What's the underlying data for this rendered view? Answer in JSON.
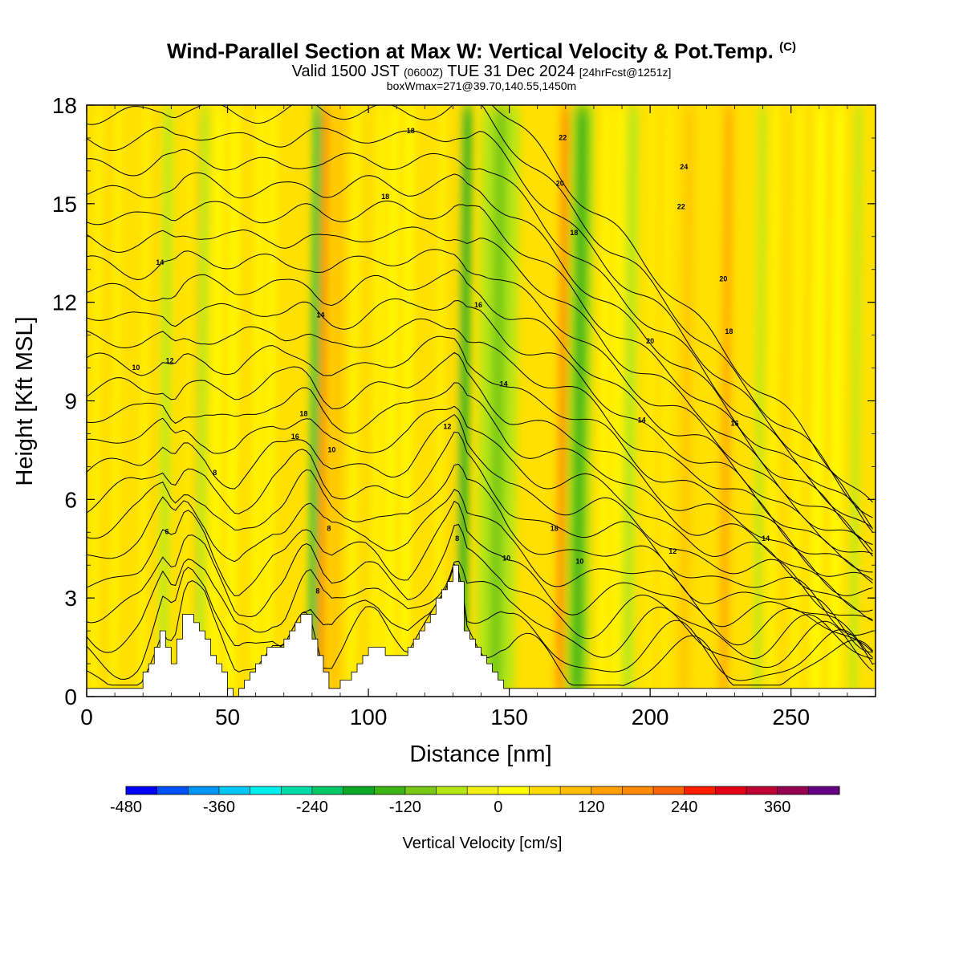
{
  "title": {
    "main": "Wind-Parallel Section at Max W: Vertical Velocity & Pot.Temp.",
    "main_mark": "(C)",
    "valid_prefix": "Valid 1500 JST",
    "valid_utc": "(0600Z)",
    "valid_date": "TUE 31 Dec 2024",
    "forecast": "[24hrFcst@1251z]",
    "boxw": "boxWmax=271@39.70,140.55,1450m"
  },
  "chart_data": {
    "type": "heatmap",
    "xlabel": "Distance [nm]",
    "ylabel": "Height [Kft MSL]",
    "xlim": [
      0,
      280
    ],
    "ylim": [
      0,
      18
    ],
    "x_ticks": [
      0,
      50,
      100,
      150,
      200,
      250
    ],
    "y_ticks": [
      0,
      3,
      6,
      9,
      12,
      15,
      18
    ],
    "colorbar": {
      "label": "Vertical Velocity [cm/s]",
      "levels": [
        -480,
        -440,
        -400,
        -360,
        -320,
        -280,
        -240,
        -200,
        -160,
        -120,
        -80,
        -40,
        0,
        40,
        80,
        120,
        160,
        200,
        240,
        280,
        320,
        360,
        400
      ],
      "tick_labels": [
        -480,
        -360,
        -240,
        -120,
        0,
        120,
        240,
        360
      ],
      "colors": [
        "#0000f5",
        "#0050f5",
        "#0096f5",
        "#00c8f5",
        "#00f0f0",
        "#00dcaa",
        "#00c864",
        "#0aaa28",
        "#3cb414",
        "#78c814",
        "#b4e614",
        "#f0f014",
        "#ffff00",
        "#ffdc00",
        "#ffbe00",
        "#ffa000",
        "#ff8c00",
        "#ff6400",
        "#ff1e00",
        "#e60014",
        "#be0032",
        "#960050",
        "#640082"
      ]
    },
    "terrain": {
      "x": [
        0,
        19,
        22,
        27,
        31,
        35,
        37,
        42,
        45,
        50,
        53,
        56,
        60,
        66,
        70,
        73,
        76,
        79,
        81,
        84,
        87,
        91,
        95,
        99,
        103,
        108,
        114,
        120,
        125,
        128,
        131,
        133,
        135,
        139,
        143,
        148,
        149,
        280
      ],
      "height": [
        0.3,
        0.3,
        0.8,
        1.9,
        1.0,
        2.5,
        2.5,
        2.0,
        1.3,
        0.5,
        0.1,
        0.5,
        0.8,
        1.5,
        1.5,
        2.0,
        2.5,
        2.5,
        1.8,
        0.8,
        0.3,
        0.4,
        0.8,
        1.3,
        1.5,
        1.3,
        1.3,
        2.2,
        2.9,
        3.3,
        4.1,
        3.4,
        2.1,
        1.4,
        0.9,
        0.5,
        0.3,
        0.3
      ]
    },
    "updrafts": [
      {
        "x": 6,
        "width": 5,
        "w": 60
      },
      {
        "x": 23,
        "width": 5,
        "w": 60
      },
      {
        "x": 38,
        "width": 4,
        "w": 80
      },
      {
        "x": 48,
        "width": 5,
        "w": 40
      },
      {
        "x": 62,
        "width": 4,
        "w": 40
      },
      {
        "x": 84,
        "width": 2.5,
        "w": 270
      },
      {
        "x": 88,
        "width": 5,
        "w": 100
      },
      {
        "x": 98,
        "width": 6,
        "w": 60
      },
      {
        "x": 110,
        "width": 5,
        "w": 40
      },
      {
        "x": 128,
        "width": 5,
        "w": 60
      },
      {
        "x": 168,
        "width": 3,
        "w": 160
      },
      {
        "x": 185,
        "width": 4,
        "w": 50
      },
      {
        "x": 202,
        "width": 4,
        "w": 60
      },
      {
        "x": 212,
        "width": 4,
        "w": 100
      },
      {
        "x": 226,
        "width": 3,
        "w": 140
      },
      {
        "x": 247,
        "width": 6,
        "w": 60
      },
      {
        "x": 262,
        "width": 6,
        "w": 40
      }
    ],
    "downdrafts": [
      {
        "x": 27,
        "width": 2.5,
        "w": -80
      },
      {
        "x": 40,
        "width": 2.5,
        "w": -60
      },
      {
        "x": 80,
        "width": 1.8,
        "w": -240
      },
      {
        "x": 133,
        "width": 2.5,
        "w": -200
      },
      {
        "x": 145,
        "width": 8,
        "w": -100
      },
      {
        "x": 174,
        "width": 5,
        "w": -140
      },
      {
        "x": 192,
        "width": 3,
        "w": -60
      },
      {
        "x": 238,
        "width": 2,
        "w": -80
      },
      {
        "x": 272,
        "width": 2,
        "w": -60
      }
    ],
    "theta_labels": [
      {
        "text": "6",
        "x": 28.5,
        "y": 5.0
      },
      {
        "text": "8",
        "x": 45.5,
        "y": 6.8
      },
      {
        "text": "10",
        "x": 17.5,
        "y": 10.0
      },
      {
        "text": "12",
        "x": 29.5,
        "y": 10.2
      },
      {
        "text": "14",
        "x": 26,
        "y": 13.2
      },
      {
        "text": "16",
        "x": 74,
        "y": 7.9
      },
      {
        "text": "18",
        "x": 77,
        "y": 8.6
      },
      {
        "text": "10",
        "x": 87,
        "y": 7.5
      },
      {
        "text": "8",
        "x": 86,
        "y": 5.1
      },
      {
        "text": "8",
        "x": 82,
        "y": 3.2
      },
      {
        "text": "14",
        "x": 83,
        "y": 11.6
      },
      {
        "text": "18",
        "x": 106,
        "y": 15.2
      },
      {
        "text": "18",
        "x": 115,
        "y": 17.2
      },
      {
        "text": "12",
        "x": 128,
        "y": 8.2
      },
      {
        "text": "8",
        "x": 131.5,
        "y": 4.8
      },
      {
        "text": "16",
        "x": 139,
        "y": 11.9
      },
      {
        "text": "14",
        "x": 148,
        "y": 9.5
      },
      {
        "text": "10",
        "x": 149,
        "y": 4.2
      },
      {
        "text": "18",
        "x": 166,
        "y": 5.1
      },
      {
        "text": "22",
        "x": 169,
        "y": 17.0
      },
      {
        "text": "20",
        "x": 168,
        "y": 15.6
      },
      {
        "text": "18",
        "x": 173,
        "y": 14.1
      },
      {
        "text": "10",
        "x": 175,
        "y": 4.1
      },
      {
        "text": "20",
        "x": 200,
        "y": 10.8
      },
      {
        "text": "14",
        "x": 197,
        "y": 8.4
      },
      {
        "text": "12",
        "x": 208,
        "y": 4.4
      },
      {
        "text": "24",
        "x": 212,
        "y": 16.1
      },
      {
        "text": "22",
        "x": 211,
        "y": 14.9
      },
      {
        "text": "20",
        "x": 226,
        "y": 12.7
      },
      {
        "text": "18",
        "x": 228,
        "y": 11.1
      },
      {
        "text": "16",
        "x": 230,
        "y": 8.3
      },
      {
        "text": "14",
        "x": 241,
        "y": 4.8
      }
    ]
  }
}
